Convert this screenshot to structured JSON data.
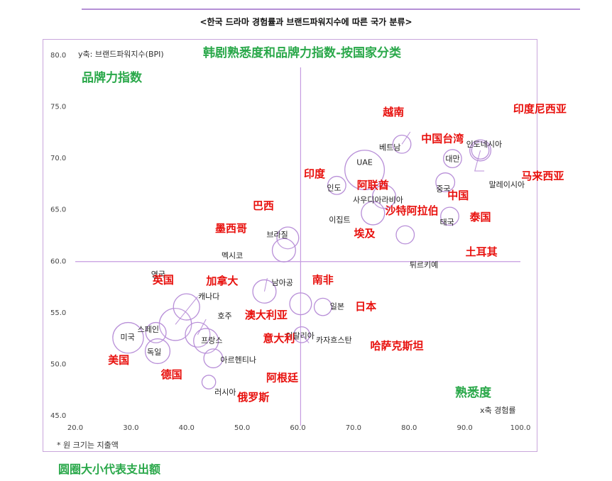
{
  "header": {
    "title": "<한국 드라마 경험률과 브랜드파워지수에 따른 국가 분류>"
  },
  "chart_data": {
    "type": "scatter",
    "title": "韩剧熟悉度和品牌力指数-按国家分类",
    "ylabel_ko": "y축: 브랜드파워지수(BPI)",
    "ylabel_cn": "品牌力指数",
    "xlabel_ko": "x축 경험률",
    "xlabel_cn": "熟悉度",
    "size_note_ko": "* 원 크기는 지출액",
    "size_note_cn": "圆圈大小代表支出额",
    "xlim": [
      20,
      100
    ],
    "ylim": [
      45,
      80
    ],
    "x_ticks": [
      "20.0",
      "30.0",
      "40.0",
      "50.0",
      "60.0",
      "70.0",
      "80.0",
      "90.0",
      "100.0"
    ],
    "y_ticks": [
      "45.0",
      "50.0",
      "55.0",
      "60.0",
      "65.0",
      "70.0",
      "75.0",
      "80.0"
    ],
    "x_divider": 60.5,
    "y_divider": 59.9,
    "points": [
      {
        "label": "UAE",
        "x": 72,
        "y": 68.8,
        "size": 4.2
      },
      {
        "label": "베트남",
        "x": 78.7,
        "y": 71.3,
        "size": 1.3
      },
      {
        "label": "인도네시아",
        "x": 92.8,
        "y": 70.7,
        "size": 1.7
      },
      {
        "label": "대만",
        "x": 87.8,
        "y": 69.9,
        "size": 1.3
      },
      {
        "label": "말레이시아",
        "x": 92.8,
        "y": 70.7,
        "size": 1.2
      },
      {
        "label": "중국",
        "x": 86.5,
        "y": 67.6,
        "size": 1.4
      },
      {
        "label": "인도",
        "x": 67,
        "y": 67.3,
        "size": 1.3
      },
      {
        "label": "사우디아라비아",
        "x": 75.5,
        "y": 66.2,
        "size": 2.0
      },
      {
        "label": "이집트",
        "x": 73.5,
        "y": 64.6,
        "size": 2.0
      },
      {
        "label": "태국",
        "x": 87.3,
        "y": 64.3,
        "size": 1.3
      },
      {
        "label": "튀르키예",
        "x": 79.3,
        "y": 62.5,
        "size": 1.3
      },
      {
        "label": "브라질",
        "x": 58.2,
        "y": 62.2,
        "size": 1.8
      },
      {
        "label": "멕시코",
        "x": 57.5,
        "y": 61.0,
        "size": 2.0
      },
      {
        "label": "남아공",
        "x": 54.0,
        "y": 57.0,
        "size": 2.0
      },
      {
        "label": "캐나다",
        "x": 38.0,
        "y": 53.8,
        "size": 3.2
      },
      {
        "label": "호주",
        "x": 42.0,
        "y": 52.8,
        "size": 2.2
      },
      {
        "label": "이탈리아",
        "x": 60.5,
        "y": 55.8,
        "size": 1.8
      },
      {
        "label": "일본",
        "x": 64.5,
        "y": 55.5,
        "size": 1.2
      },
      {
        "label": "영국",
        "x": 40.0,
        "y": 55.5,
        "size": 2.4
      },
      {
        "label": "스페인",
        "x": 34.5,
        "y": 53.0,
        "size": 1.6
      },
      {
        "label": "미국",
        "x": 29.5,
        "y": 52.5,
        "size": 3.0
      },
      {
        "label": "독일",
        "x": 34.8,
        "y": 51.2,
        "size": 2.2
      },
      {
        "label": "프랑스",
        "x": 43.5,
        "y": 52.2,
        "size": 2.2
      },
      {
        "label": "카자흐스탄",
        "x": 60.7,
        "y": 52.8,
        "size": 1.0
      },
      {
        "label": "아르헨티나",
        "x": 44.8,
        "y": 50.5,
        "size": 1.4
      },
      {
        "label": "러시아",
        "x": 44.0,
        "y": 48.2,
        "size": 0.7
      }
    ],
    "annotations": [
      {
        "text": "越南",
        "x": 77.2,
        "y": 74.5
      },
      {
        "text": "印度尼西亚",
        "x": 103.5,
        "y": 74.8
      },
      {
        "text": "中国台湾",
        "x": 86.0,
        "y": 71.9
      },
      {
        "text": "马来西亚",
        "x": 104.0,
        "y": 68.3
      },
      {
        "text": "印度",
        "x": 63.0,
        "y": 68.5
      },
      {
        "text": "阿联酋",
        "x": 73.5,
        "y": 67.4
      },
      {
        "text": "中国",
        "x": 88.8,
        "y": 66.4
      },
      {
        "text": "沙特阿拉伯",
        "x": 80.5,
        "y": 64.9
      },
      {
        "text": "泰国",
        "x": 92.8,
        "y": 64.3
      },
      {
        "text": "巴西",
        "x": 53.8,
        "y": 65.4
      },
      {
        "text": "墨西哥",
        "x": 48.0,
        "y": 63.2
      },
      {
        "text": "埃及",
        "x": 72.0,
        "y": 62.7
      },
      {
        "text": "土耳其",
        "x": 93.0,
        "y": 60.9
      },
      {
        "text": "英国",
        "x": 35.8,
        "y": 58.2
      },
      {
        "text": "加拿大",
        "x": 46.4,
        "y": 58.1
      },
      {
        "text": "南非",
        "x": 64.5,
        "y": 58.2
      },
      {
        "text": "日本",
        "x": 72.2,
        "y": 55.6
      },
      {
        "text": "澳大利亚",
        "x": 54.3,
        "y": 54.8
      },
      {
        "text": "意大利",
        "x": 56.6,
        "y": 52.5
      },
      {
        "text": "哈萨克斯坦",
        "x": 77.8,
        "y": 51.8
      },
      {
        "text": "美国",
        "x": 27.8,
        "y": 50.4
      },
      {
        "text": "德国",
        "x": 37.3,
        "y": 49.0
      },
      {
        "text": "阿根廷",
        "x": 57.2,
        "y": 48.7
      },
      {
        "text": "俄罗斯",
        "x": 52.0,
        "y": 46.8
      }
    ],
    "colors": {
      "bubble": "#b88fd8",
      "divider": "#c59be0",
      "annotation": "#e8100d",
      "green": "#2aa84a"
    }
  }
}
